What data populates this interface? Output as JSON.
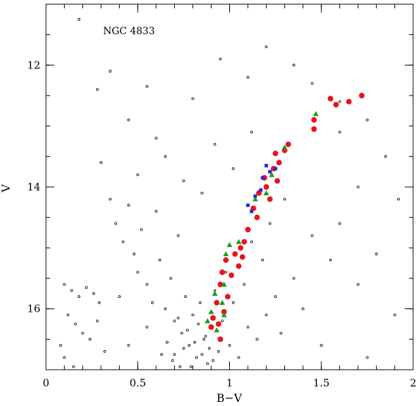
{
  "chart_data": {
    "type": "scatter",
    "title": "",
    "annotation": "NGC 4833",
    "xlabel": "B−V",
    "ylabel": "V",
    "xlim": [
      0,
      2
    ],
    "ylim": [
      17.0,
      11.0
    ],
    "y_inverted": true,
    "grid": false,
    "legend": "none",
    "x_ticks": [
      0,
      0.5,
      1,
      1.5,
      2
    ],
    "x_tick_labels": [
      "0",
      "0.5",
      "1",
      "1.5",
      "2"
    ],
    "y_ticks": [
      12,
      14,
      16
    ],
    "y_tick_labels": [
      "12",
      "14",
      "16"
    ],
    "series": [
      {
        "marker": "open-circle",
        "color": "#000000",
        "points": [
          [
            0.18,
            11.25
          ],
          [
            0.28,
            12.4
          ],
          [
            0.35,
            12.1
          ],
          [
            0.55,
            12.35
          ],
          [
            0.8,
            12.55
          ],
          [
            1.1,
            12.2
          ],
          [
            1.35,
            12.0
          ],
          [
            1.45,
            12.3
          ],
          [
            1.6,
            12.6
          ],
          [
            1.75,
            12.9
          ],
          [
            1.85,
            13.5
          ],
          [
            1.92,
            14.2
          ],
          [
            1.6,
            14.6
          ],
          [
            1.55,
            15.2
          ],
          [
            1.7,
            15.6
          ],
          [
            0.95,
            11.9
          ],
          [
            1.2,
            11.7
          ],
          [
            0.45,
            12.9
          ],
          [
            0.6,
            13.2
          ],
          [
            0.3,
            13.6
          ],
          [
            0.1,
            15.6
          ],
          [
            0.14,
            15.7
          ],
          [
            0.18,
            15.8
          ],
          [
            0.22,
            15.65
          ],
          [
            0.26,
            15.75
          ],
          [
            0.29,
            15.9
          ],
          [
            0.12,
            16.1
          ],
          [
            0.16,
            16.25
          ],
          [
            0.2,
            16.4
          ],
          [
            0.08,
            16.6
          ],
          [
            0.1,
            16.8
          ],
          [
            0.15,
            16.95
          ],
          [
            0.24,
            16.5
          ],
          [
            0.28,
            16.2
          ],
          [
            0.32,
            16.7
          ],
          [
            0.35,
            14.2
          ],
          [
            0.38,
            14.6
          ],
          [
            0.42,
            14.9
          ],
          [
            0.45,
            14.3
          ],
          [
            0.48,
            15.1
          ],
          [
            0.5,
            15.4
          ],
          [
            0.52,
            14.7
          ],
          [
            0.55,
            15.6
          ],
          [
            0.58,
            15.9
          ],
          [
            0.6,
            14.4
          ],
          [
            0.62,
            15.2
          ],
          [
            0.65,
            16.0
          ],
          [
            0.68,
            15.5
          ],
          [
            0.7,
            16.2
          ],
          [
            0.72,
            14.8
          ],
          [
            0.74,
            16.4
          ],
          [
            0.76,
            15.8
          ],
          [
            0.78,
            16.6
          ],
          [
            0.8,
            16.1
          ],
          [
            0.82,
            16.8
          ],
          [
            0.84,
            15.9
          ],
          [
            0.86,
            16.5
          ],
          [
            0.88,
            16.9
          ],
          [
            0.9,
            16.3
          ],
          [
            0.92,
            15.7
          ],
          [
            0.94,
            16.7
          ],
          [
            0.96,
            16.2
          ],
          [
            0.98,
            15.4
          ],
          [
            1.0,
            16.6
          ],
          [
            1.02,
            15.9
          ],
          [
            1.05,
            16.8
          ],
          [
            1.08,
            15.6
          ],
          [
            1.1,
            16.3
          ],
          [
            1.12,
            14.9
          ],
          [
            1.15,
            16.5
          ],
          [
            1.18,
            15.2
          ],
          [
            1.2,
            16.1
          ],
          [
            1.22,
            14.6
          ],
          [
            1.25,
            15.8
          ],
          [
            1.28,
            16.4
          ],
          [
            1.3,
            14.2
          ],
          [
            1.35,
            15.5
          ],
          [
            1.4,
            16.0
          ],
          [
            1.45,
            14.8
          ],
          [
            1.5,
            16.6
          ],
          [
            0.66,
            16.55
          ],
          [
            0.7,
            16.75
          ],
          [
            0.73,
            16.95
          ],
          [
            0.77,
            16.35
          ],
          [
            0.81,
            16.55
          ],
          [
            0.85,
            16.75
          ],
          [
            0.79,
            16.95
          ],
          [
            0.83,
            16.25
          ],
          [
            0.87,
            16.45
          ],
          [
            0.75,
            16.65
          ],
          [
            0.69,
            16.85
          ],
          [
            0.72,
            16.15
          ],
          [
            0.89,
            16.65
          ],
          [
            0.63,
            16.75
          ],
          [
            0.91,
            16.85
          ],
          [
            0.5,
            13.8
          ],
          [
            0.65,
            13.5
          ],
          [
            0.75,
            13.9
          ],
          [
            0.85,
            14.1
          ],
          [
            0.92,
            13.3
          ],
          [
            1.02,
            13.7
          ],
          [
            1.12,
            13.1
          ],
          [
            0.4,
            15.8
          ],
          [
            0.55,
            16.3
          ],
          [
            0.45,
            16.6
          ],
          [
            1.6,
            13.1
          ],
          [
            1.7,
            14.0
          ],
          [
            1.8,
            15.1
          ],
          [
            1.9,
            16.1
          ],
          [
            1.75,
            16.8
          ]
        ]
      },
      {
        "marker": "filled-circle",
        "color": "#e8141b",
        "points": [
          [
            1.72,
            12.5
          ],
          [
            1.65,
            12.6
          ],
          [
            1.58,
            12.65
          ],
          [
            1.55,
            12.55
          ],
          [
            1.46,
            12.9
          ],
          [
            1.46,
            13.05
          ],
          [
            1.32,
            13.3
          ],
          [
            1.3,
            13.4
          ],
          [
            1.25,
            13.45
          ],
          [
            1.27,
            13.6
          ],
          [
            1.24,
            13.7
          ],
          [
            1.19,
            13.85
          ],
          [
            1.26,
            13.9
          ],
          [
            1.2,
            14.0
          ],
          [
            1.16,
            14.1
          ],
          [
            1.22,
            14.2
          ],
          [
            1.13,
            14.35
          ],
          [
            1.15,
            14.5
          ],
          [
            1.1,
            14.7
          ],
          [
            1.08,
            14.9
          ],
          [
            1.06,
            15.0
          ],
          [
            1.03,
            15.1
          ],
          [
            0.98,
            15.2
          ],
          [
            0.96,
            15.4
          ],
          [
            1.01,
            15.45
          ],
          [
            0.95,
            15.6
          ],
          [
            0.99,
            15.8
          ],
          [
            0.93,
            15.9
          ],
          [
            0.97,
            16.05
          ],
          [
            0.91,
            16.15
          ],
          [
            0.94,
            16.25
          ],
          [
            0.9,
            16.3
          ],
          [
            0.95,
            16.5
          ],
          [
            1.05,
            15.3
          ],
          [
            1.07,
            15.15
          ]
        ]
      },
      {
        "marker": "filled-triangle",
        "color": "#1c9a1c",
        "points": [
          [
            1.47,
            12.8
          ],
          [
            1.3,
            13.35
          ],
          [
            1.23,
            13.8
          ],
          [
            1.2,
            14.1
          ],
          [
            1.14,
            14.2
          ],
          [
            1.05,
            14.9
          ],
          [
            1.0,
            14.95
          ],
          [
            0.98,
            15.1
          ],
          [
            0.97,
            15.6
          ],
          [
            0.92,
            15.75
          ],
          [
            0.96,
            15.9
          ],
          [
            0.9,
            16.05
          ],
          [
            0.88,
            16.2
          ],
          [
            0.93,
            16.35
          ],
          [
            0.97,
            16.1
          ]
        ]
      },
      {
        "marker": "filled-square",
        "color": "#1f2bd8",
        "points": [
          [
            1.2,
            13.65
          ],
          [
            1.22,
            13.75
          ],
          [
            1.18,
            13.85
          ],
          [
            1.17,
            14.05
          ],
          [
            1.14,
            14.15
          ],
          [
            1.1,
            14.3
          ],
          [
            1.12,
            14.4
          ],
          [
            1.25,
            13.7
          ]
        ]
      }
    ]
  }
}
